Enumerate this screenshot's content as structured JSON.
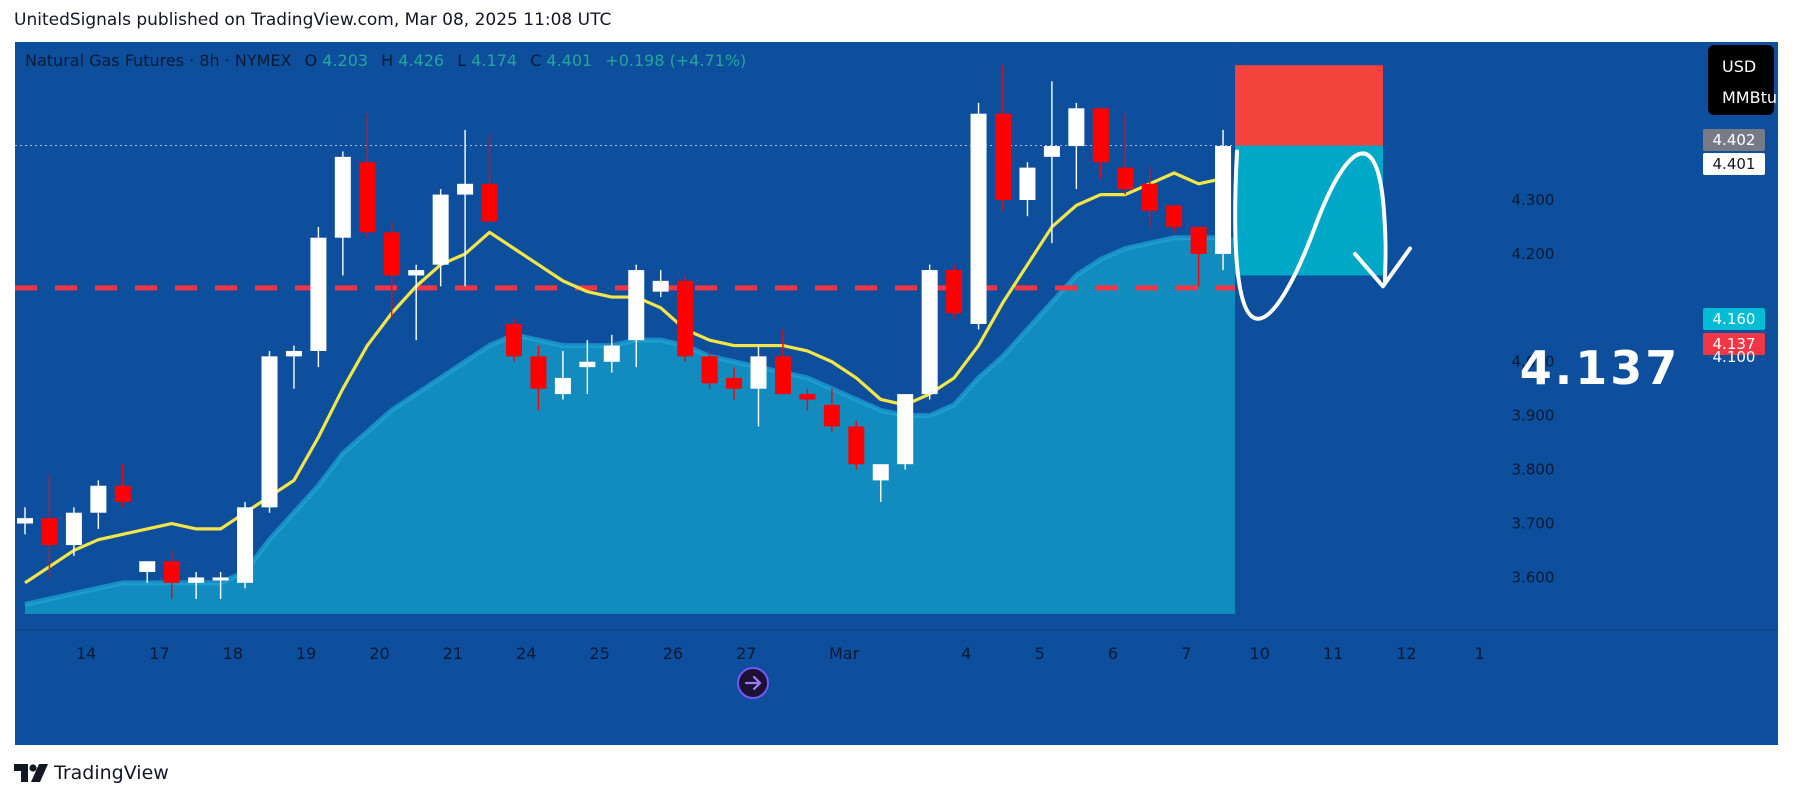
{
  "header": "UnitedSignals published on TradingView.com, Mar 08, 2025 11:08 UTC",
  "legend": {
    "symbol": "Natural Gas Futures · 8h · NYMEX",
    "o_label": "O",
    "o": "4.203",
    "h_label": "H",
    "h": "4.426",
    "l_label": "L",
    "l": "4.174",
    "c_label": "C",
    "c": "4.401",
    "change": "+0.198 (+4.71%)"
  },
  "currency": {
    "line1": "USD",
    "line2": "MMBtu"
  },
  "price_tags": {
    "p4402": "4.402",
    "p4401": "4.401",
    "p4160": "4.160",
    "p4137": "4.137",
    "p4100": "4.100"
  },
  "target_label": "4.137",
  "footer": {
    "brand": "TradingView"
  },
  "colors": {
    "background": "#0d4f9c",
    "bull": "#ffffff",
    "bear": "#ff0000",
    "ma": "#f4e646",
    "area": "#1495c6",
    "target_line": "#f23645",
    "stop_box": "#f4433c",
    "target_box": "#00a8c8"
  },
  "chart_data": {
    "type": "candlestick",
    "interval": "8h",
    "ylim": [
      3.56,
      4.58
    ],
    "y_ticks": [
      3.6,
      3.7,
      3.8,
      3.9,
      4.0,
      4.2,
      4.3
    ],
    "y_tick_labels": [
      "3.600",
      "3.700",
      "3.800",
      "3.900",
      "4.000",
      "4.200",
      "4.300"
    ],
    "x_labels": [
      "14",
      "17",
      "18",
      "19",
      "20",
      "21",
      "24",
      "25",
      "26",
      "27",
      "Mar",
      "4",
      "5",
      "6",
      "7",
      "10",
      "11",
      "12",
      "1"
    ],
    "x_label_slots": [
      2.5,
      5.5,
      8.5,
      11.5,
      14.5,
      17.5,
      20.5,
      23.5,
      26.5,
      29.5,
      33.5,
      38.5,
      41.5,
      44.5,
      47.5,
      50.5,
      53.5,
      56.5,
      59.5
    ],
    "candles": [
      {
        "o": 3.7,
        "h": 3.73,
        "l": 3.68,
        "c": 3.71
      },
      {
        "o": 3.71,
        "h": 3.79,
        "l": 3.6,
        "c": 3.66
      },
      {
        "o": 3.66,
        "h": 3.73,
        "l": 3.64,
        "c": 3.72
      },
      {
        "o": 3.72,
        "h": 3.78,
        "l": 3.69,
        "c": 3.77
      },
      {
        "o": 3.77,
        "h": 3.81,
        "l": 3.73,
        "c": 3.74
      },
      {
        "o": 3.61,
        "h": 3.63,
        "l": 3.59,
        "c": 3.63
      },
      {
        "o": 3.63,
        "h": 3.65,
        "l": 3.56,
        "c": 3.59
      },
      {
        "o": 3.59,
        "h": 3.61,
        "l": 3.56,
        "c": 3.6
      },
      {
        "o": 3.6,
        "h": 3.61,
        "l": 3.56,
        "c": 3.6
      },
      {
        "o": 3.59,
        "h": 3.74,
        "l": 3.58,
        "c": 3.73
      },
      {
        "o": 3.73,
        "h": 4.02,
        "l": 3.72,
        "c": 4.01
      },
      {
        "o": 4.01,
        "h": 4.03,
        "l": 3.95,
        "c": 4.02
      },
      {
        "o": 4.02,
        "h": 4.25,
        "l": 3.99,
        "c": 4.23
      },
      {
        "o": 4.23,
        "h": 4.39,
        "l": 4.16,
        "c": 4.38
      },
      {
        "o": 4.37,
        "h": 4.46,
        "l": 4.23,
        "c": 4.24
      },
      {
        "o": 4.24,
        "h": 4.26,
        "l": 4.08,
        "c": 4.16
      },
      {
        "o": 4.16,
        "h": 4.18,
        "l": 4.04,
        "c": 4.17
      },
      {
        "o": 4.18,
        "h": 4.32,
        "l": 4.14,
        "c": 4.31
      },
      {
        "o": 4.31,
        "h": 4.43,
        "l": 4.14,
        "c": 4.33
      },
      {
        "o": 4.33,
        "h": 4.42,
        "l": 4.27,
        "c": 4.26
      },
      {
        "o": 4.07,
        "h": 4.08,
        "l": 4.0,
        "c": 4.01
      },
      {
        "o": 4.01,
        "h": 4.03,
        "l": 3.91,
        "c": 3.95
      },
      {
        "o": 3.94,
        "h": 4.02,
        "l": 3.93,
        "c": 3.97
      },
      {
        "o": 3.99,
        "h": 4.04,
        "l": 3.94,
        "c": 4.0
      },
      {
        "o": 4.0,
        "h": 4.05,
        "l": 3.98,
        "c": 4.03
      },
      {
        "o": 4.04,
        "h": 4.18,
        "l": 3.99,
        "c": 4.17
      },
      {
        "o": 4.13,
        "h": 4.17,
        "l": 4.12,
        "c": 4.15
      },
      {
        "o": 4.15,
        "h": 4.16,
        "l": 4.0,
        "c": 4.01
      },
      {
        "o": 4.01,
        "h": 4.02,
        "l": 3.95,
        "c": 3.96
      },
      {
        "o": 3.97,
        "h": 3.99,
        "l": 3.93,
        "c": 3.95
      },
      {
        "o": 3.95,
        "h": 4.03,
        "l": 3.88,
        "c": 4.01
      },
      {
        "o": 4.01,
        "h": 4.06,
        "l": 3.94,
        "c": 3.94
      },
      {
        "o": 3.94,
        "h": 3.95,
        "l": 3.91,
        "c": 3.93
      },
      {
        "o": 3.92,
        "h": 3.95,
        "l": 3.87,
        "c": 3.88
      },
      {
        "o": 3.88,
        "h": 3.89,
        "l": 3.8,
        "c": 3.81
      },
      {
        "o": 3.78,
        "h": 3.8,
        "l": 3.74,
        "c": 3.81
      },
      {
        "o": 3.81,
        "h": 3.94,
        "l": 3.8,
        "c": 3.94
      },
      {
        "o": 3.94,
        "h": 4.18,
        "l": 3.93,
        "c": 4.17
      },
      {
        "o": 4.17,
        "h": 4.18,
        "l": 4.08,
        "c": 4.09
      },
      {
        "o": 4.07,
        "h": 4.48,
        "l": 4.06,
        "c": 4.46
      },
      {
        "o": 4.46,
        "h": 4.55,
        "l": 4.28,
        "c": 4.3
      },
      {
        "o": 4.3,
        "h": 4.37,
        "l": 4.27,
        "c": 4.36
      },
      {
        "o": 4.38,
        "h": 4.52,
        "l": 4.22,
        "c": 4.4
      },
      {
        "o": 4.4,
        "h": 4.48,
        "l": 4.32,
        "c": 4.47
      },
      {
        "o": 4.47,
        "h": 4.47,
        "l": 4.34,
        "c": 4.37
      },
      {
        "o": 4.36,
        "h": 4.46,
        "l": 4.31,
        "c": 4.32
      },
      {
        "o": 4.33,
        "h": 4.36,
        "l": 4.25,
        "c": 4.28
      },
      {
        "o": 4.29,
        "h": 4.29,
        "l": 4.24,
        "c": 4.25
      },
      {
        "o": 4.25,
        "h": 4.25,
        "l": 4.14,
        "c": 4.2
      },
      {
        "o": 4.2,
        "h": 4.43,
        "l": 4.17,
        "c": 4.4
      }
    ],
    "ma_series": {
      "name": "",
      "values": [
        3.59,
        3.62,
        3.65,
        3.67,
        3.68,
        3.69,
        3.7,
        3.69,
        3.69,
        3.72,
        3.75,
        3.78,
        3.86,
        3.95,
        4.03,
        4.09,
        4.14,
        4.18,
        4.2,
        4.24,
        4.21,
        4.18,
        4.15,
        4.13,
        4.12,
        4.12,
        4.1,
        4.06,
        4.04,
        4.03,
        4.03,
        4.03,
        4.02,
        4.0,
        3.97,
        3.93,
        3.92,
        3.94,
        3.97,
        4.03,
        4.11,
        4.18,
        4.25,
        4.29,
        4.31,
        4.31,
        4.33,
        4.35,
        4.33,
        4.34
      ]
    },
    "area_series": {
      "name": "",
      "values": [
        3.55,
        3.56,
        3.57,
        3.58,
        3.59,
        3.59,
        3.59,
        3.59,
        3.59,
        3.61,
        3.67,
        3.72,
        3.77,
        3.83,
        3.87,
        3.91,
        3.94,
        3.97,
        4.0,
        4.03,
        4.05,
        4.04,
        4.03,
        4.03,
        4.03,
        4.04,
        4.04,
        4.03,
        4.01,
        4.0,
        3.99,
        3.98,
        3.97,
        3.95,
        3.93,
        3.91,
        3.9,
        3.9,
        3.92,
        3.97,
        4.01,
        4.06,
        4.11,
        4.16,
        4.19,
        4.21,
        4.22,
        4.23,
        4.23,
        4.23
      ]
    },
    "target_price": 4.137,
    "current_price": 4.401,
    "stop_level": 4.55,
    "target_zone": [
      4.16,
      4.401
    ]
  }
}
